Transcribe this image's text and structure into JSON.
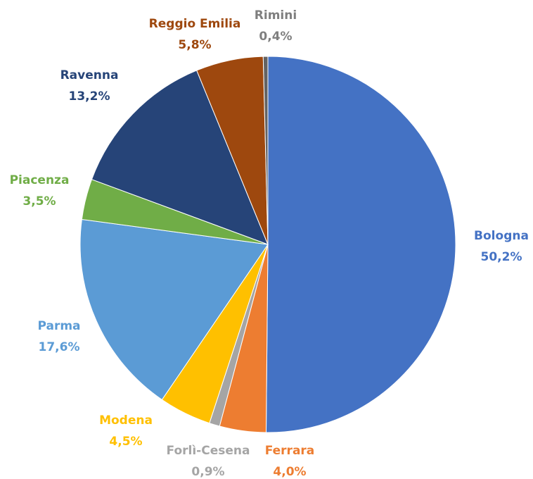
{
  "chart_data": {
    "type": "pie",
    "categories": [
      "Bologna",
      "Ferrara",
      "Forlì-Cesena",
      "Modena",
      "Parma",
      "Piacenza",
      "Ravenna",
      "Reggio Emilia",
      "Rimini"
    ],
    "values": [
      50.2,
      4.0,
      0.9,
      4.5,
      17.6,
      3.5,
      13.2,
      5.8,
      0.4
    ],
    "value_labels": [
      "50,2%",
      "4,0%",
      "0,9%",
      "4,5%",
      "17,6%",
      "3,5%",
      "13,2%",
      "5,8%",
      "0,4%"
    ],
    "colors": [
      "#4472c4",
      "#ed7d31",
      "#a5a5a5",
      "#ffc000",
      "#5b9bd5",
      "#70ad47",
      "#264478",
      "#9e480e",
      "#636363"
    ]
  }
}
